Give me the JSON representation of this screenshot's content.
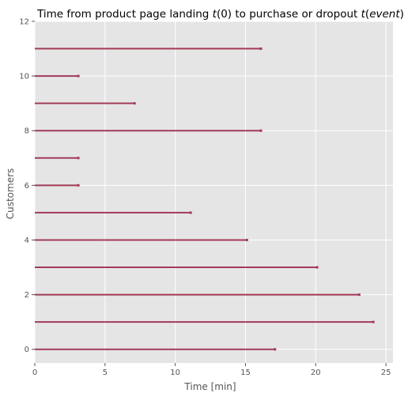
{
  "chart_data": {
    "type": "bar",
    "orientation": "horizontal",
    "title": "Time from product page landing t(0) to purchase or dropout t(event)",
    "title_parts": [
      "Time from product page landing ",
      "t",
      "(0) to purchase or dropout ",
      "t",
      "(",
      "event",
      ")"
    ],
    "xlabel": "Time [min]",
    "ylabel": "Customers",
    "xlim": [
      0,
      25.5
    ],
    "ylim": [
      -0.5,
      12
    ],
    "xticks": [
      0,
      5,
      10,
      15,
      20,
      25
    ],
    "yticks": [
      0,
      2,
      4,
      6,
      8,
      10,
      12
    ],
    "grid": true,
    "legend": "none",
    "customers": [
      0,
      1,
      2,
      3,
      4,
      5,
      6,
      7,
      8,
      9,
      10,
      11
    ],
    "durations": [
      17.1,
      24.1,
      23.1,
      20.1,
      15.1,
      11.1,
      3.1,
      3.1,
      16.1,
      7.1,
      3.1,
      16.1
    ],
    "colors": {
      "line": "#a23b58",
      "background": "#e5e5e5",
      "grid": "#ffffff",
      "text": "#555555",
      "title": "#000000"
    }
  }
}
